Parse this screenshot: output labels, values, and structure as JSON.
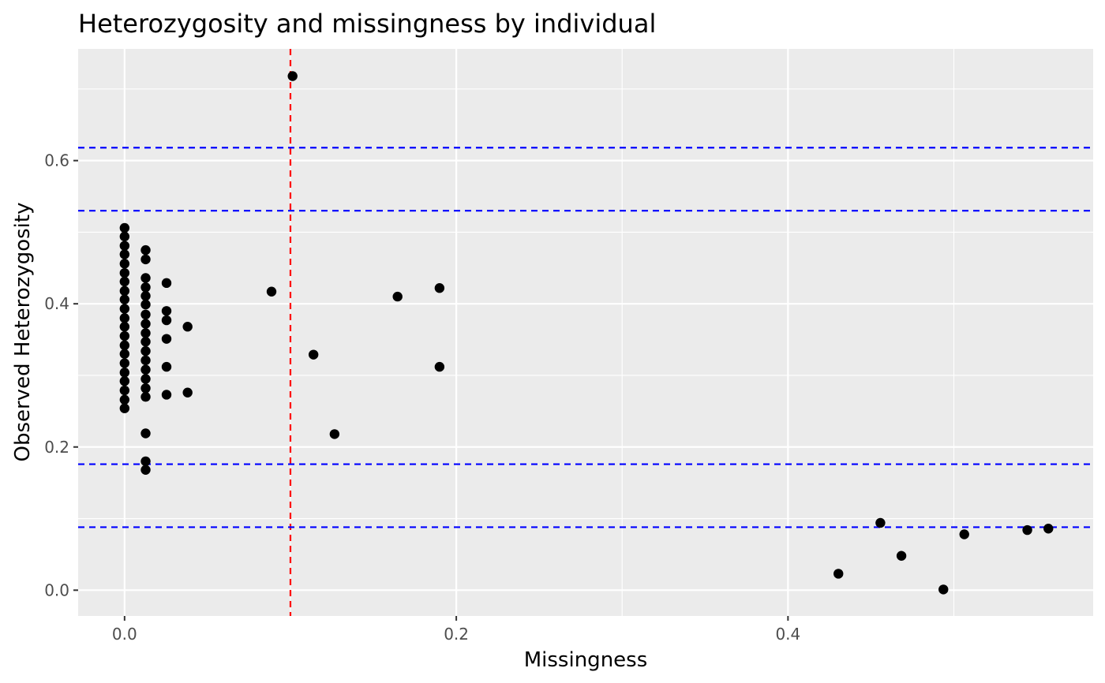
{
  "chart_data": {
    "type": "scatter",
    "title": "Heterozygosity and missingness by individual",
    "xlabel": "Missingness",
    "ylabel": "Observed Heterozygosity",
    "xlim": [
      -0.028,
      0.584
    ],
    "ylim": [
      -0.036,
      0.756
    ],
    "x_ticks": [
      0.0,
      0.2,
      0.4
    ],
    "x_tick_labels": [
      "0.0",
      "0.2",
      "0.4"
    ],
    "y_ticks": [
      0.0,
      0.2,
      0.4,
      0.6
    ],
    "y_tick_labels": [
      "0.0",
      "0.2",
      "0.4",
      "0.6"
    ],
    "x_minor_ticks": [
      0.1,
      0.3,
      0.5
    ],
    "y_minor_ticks": [
      0.1,
      0.3,
      0.5,
      0.7
    ],
    "grid": true,
    "panel_color": "#ebebeb",
    "grid_color": "#ffffff",
    "point_color": "#000000",
    "reference_lines": [
      {
        "orientation": "vertical",
        "value": 0.1,
        "color": "#ff0000",
        "style": "dashed"
      },
      {
        "orientation": "horizontal",
        "value": 0.618,
        "color": "#0000ff",
        "style": "dashed"
      },
      {
        "orientation": "horizontal",
        "value": 0.53,
        "color": "#0000ff",
        "style": "dashed"
      },
      {
        "orientation": "horizontal",
        "value": 0.176,
        "color": "#0000ff",
        "style": "dashed"
      },
      {
        "orientation": "horizontal",
        "value": 0.088,
        "color": "#0000ff",
        "style": "dashed"
      }
    ],
    "series": [
      {
        "points": [
          [
            0.0,
            0.506
          ],
          [
            0.0,
            0.494
          ],
          [
            0.0,
            0.481
          ],
          [
            0.0,
            0.469
          ],
          [
            0.0,
            0.456
          ],
          [
            0.0,
            0.443
          ],
          [
            0.0,
            0.431
          ],
          [
            0.0,
            0.418
          ],
          [
            0.0,
            0.406
          ],
          [
            0.0,
            0.393
          ],
          [
            0.0,
            0.38
          ],
          [
            0.0,
            0.368
          ],
          [
            0.0,
            0.355
          ],
          [
            0.0,
            0.342
          ],
          [
            0.0,
            0.33
          ],
          [
            0.0,
            0.317
          ],
          [
            0.0,
            0.304
          ],
          [
            0.0,
            0.292
          ],
          [
            0.0,
            0.279
          ],
          [
            0.0,
            0.266
          ],
          [
            0.0,
            0.254
          ],
          [
            0.0127,
            0.475
          ],
          [
            0.0127,
            0.462
          ],
          [
            0.0127,
            0.436
          ],
          [
            0.0127,
            0.423
          ],
          [
            0.0127,
            0.411
          ],
          [
            0.0127,
            0.399
          ],
          [
            0.0127,
            0.385
          ],
          [
            0.0127,
            0.372
          ],
          [
            0.0127,
            0.359
          ],
          [
            0.0127,
            0.347
          ],
          [
            0.0127,
            0.334
          ],
          [
            0.0127,
            0.321
          ],
          [
            0.0127,
            0.308
          ],
          [
            0.0127,
            0.295
          ],
          [
            0.0127,
            0.282
          ],
          [
            0.0127,
            0.27
          ],
          [
            0.0127,
            0.219
          ],
          [
            0.0127,
            0.18
          ],
          [
            0.0127,
            0.168
          ],
          [
            0.0253,
            0.429
          ],
          [
            0.0253,
            0.39
          ],
          [
            0.0253,
            0.377
          ],
          [
            0.0253,
            0.351
          ],
          [
            0.0253,
            0.312
          ],
          [
            0.0253,
            0.273
          ],
          [
            0.038,
            0.368
          ],
          [
            0.038,
            0.276
          ],
          [
            0.0886,
            0.417
          ],
          [
            0.1013,
            0.718
          ],
          [
            0.1139,
            0.329
          ],
          [
            0.1266,
            0.218
          ],
          [
            0.1646,
            0.41
          ],
          [
            0.1899,
            0.422
          ],
          [
            0.1899,
            0.312
          ],
          [
            0.4304,
            0.023
          ],
          [
            0.4557,
            0.094
          ],
          [
            0.4684,
            0.048
          ],
          [
            0.4937,
            0.001
          ],
          [
            0.5063,
            0.078
          ],
          [
            0.5443,
            0.084
          ],
          [
            0.557,
            0.086
          ]
        ]
      }
    ]
  }
}
